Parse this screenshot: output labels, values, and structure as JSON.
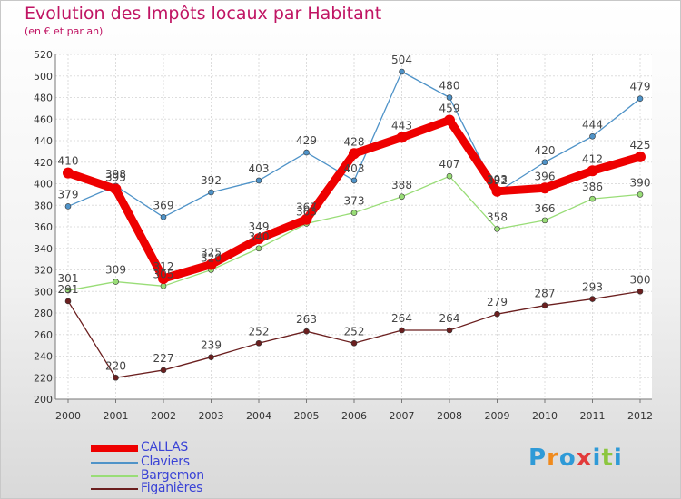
{
  "title": "Evolution des Impôts locaux par Habitant",
  "subtitle": "(en € et par an)",
  "brand": {
    "text": "Proxiti",
    "letter_colors": [
      "#2e9ad7",
      "#f08a1c",
      "#2e9ad7",
      "#e23a3a",
      "#2e9ad7",
      "#8cc63f",
      "#2e9ad7"
    ]
  },
  "chart_data": {
    "type": "line",
    "title": "Evolution des Impôts locaux par Habitant",
    "subtitle": "(en € et par an)",
    "categories": [
      "2000",
      "2001",
      "2002",
      "2003",
      "2004",
      "2005",
      "2006",
      "2007",
      "2008",
      "2009",
      "2010",
      "2011",
      "2012"
    ],
    "ylim": [
      200,
      520
    ],
    "yticks": [
      200,
      220,
      240,
      260,
      280,
      300,
      320,
      340,
      360,
      380,
      400,
      420,
      440,
      460,
      480,
      500,
      520
    ],
    "grid": true,
    "legend": "bottom-left",
    "series": [
      {
        "name": "CALLAS",
        "color": "#ee0000",
        "values": [
          410,
          395,
          312,
          325,
          349,
          367,
          428,
          443,
          459,
          393,
          396,
          412,
          425
        ]
      },
      {
        "name": "Claviers",
        "color": "#4f93c8",
        "values": [
          379,
          398,
          369,
          392,
          403,
          429,
          403,
          504,
          480,
          392,
          420,
          444,
          479
        ]
      },
      {
        "name": "Bargemon",
        "color": "#99dd77",
        "values": [
          301,
          309,
          305,
          320,
          340,
          363,
          373,
          388,
          407,
          358,
          366,
          386,
          390
        ]
      },
      {
        "name": "Figanières",
        "color": "#6b1f1f",
        "values": [
          291,
          220,
          227,
          239,
          252,
          263,
          252,
          264,
          264,
          279,
          287,
          293,
          300
        ]
      }
    ]
  }
}
